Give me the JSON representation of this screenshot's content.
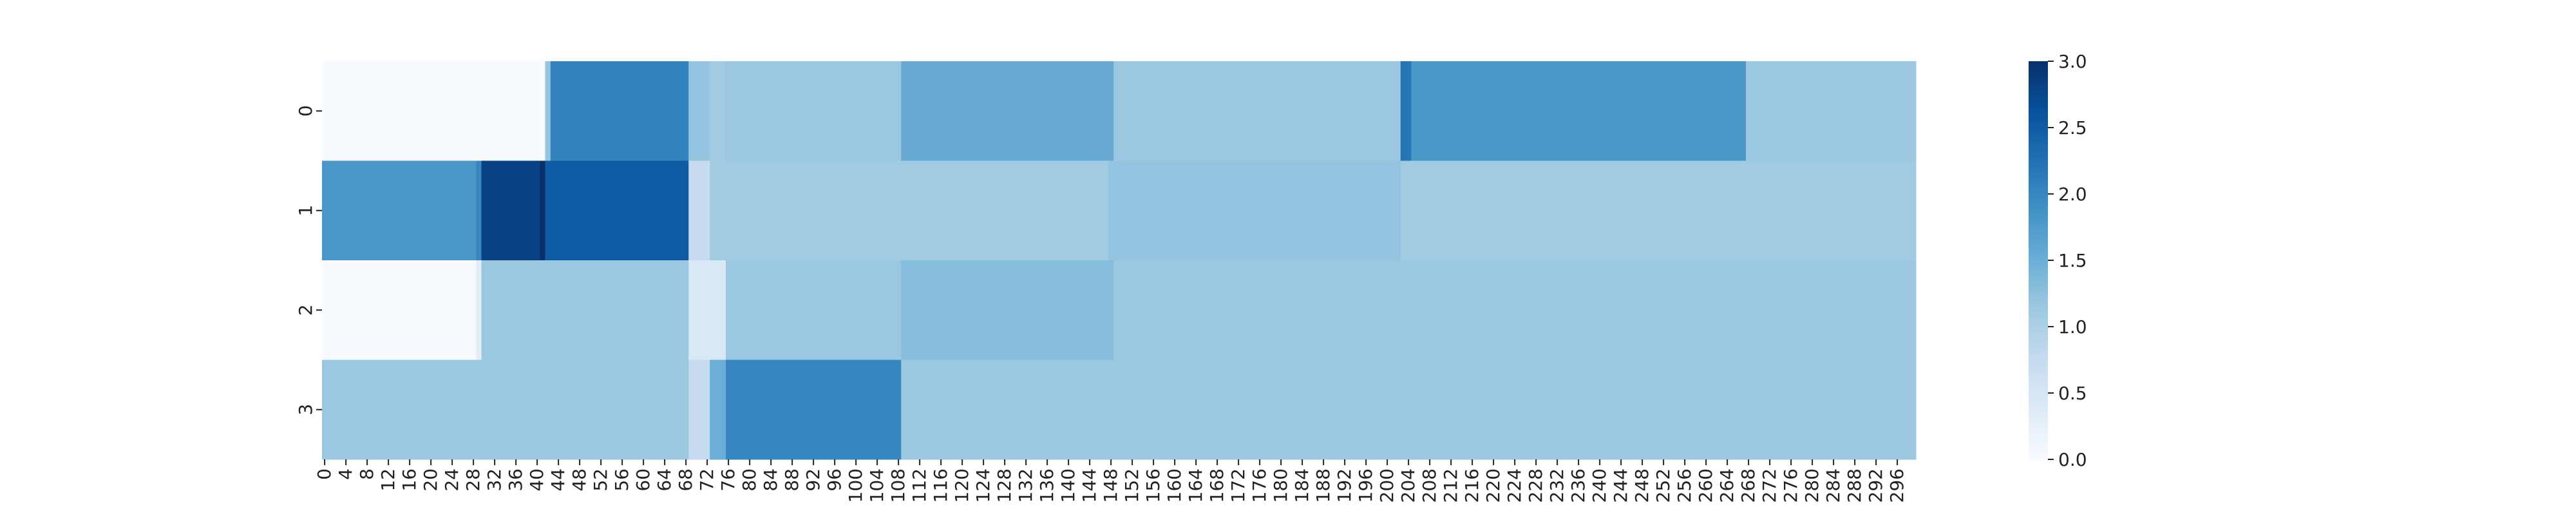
{
  "chart_data": {
    "type": "heatmap",
    "title": "",
    "xlabel": "",
    "ylabel": "",
    "x_tick_labels": [
      "0",
      "4",
      "8",
      "12",
      "16",
      "20",
      "24",
      "28",
      "32",
      "36",
      "40",
      "44",
      "48",
      "52",
      "56",
      "60",
      "64",
      "68",
      "72",
      "76",
      "80",
      "84",
      "88",
      "92",
      "96",
      "100",
      "104",
      "108",
      "112",
      "116",
      "120",
      "124",
      "128",
      "132",
      "136",
      "140",
      "144",
      "148",
      "152",
      "156",
      "160",
      "164",
      "168",
      "172",
      "176",
      "180",
      "184",
      "188",
      "192",
      "196",
      "200",
      "204",
      "208",
      "212",
      "216",
      "220",
      "224",
      "228",
      "232",
      "236",
      "240",
      "244",
      "248",
      "252",
      "256",
      "260",
      "264",
      "268",
      "272",
      "276",
      "280",
      "284",
      "288",
      "292",
      "296"
    ],
    "y_tick_labels": [
      "0",
      "1",
      "2",
      "3"
    ],
    "x_range": [
      0,
      300
    ],
    "colormap": "Blues",
    "value_range": [
      0.0,
      3.0
    ],
    "colorbar_ticks": [
      "0.0",
      "0.5",
      "1.0",
      "1.5",
      "2.0",
      "2.5",
      "3.0"
    ],
    "colors": {
      "low": "#f7fbff",
      "high": "#08306b"
    },
    "rows": [
      {
        "row": "0",
        "segments": [
          {
            "x_start": 0,
            "x_end": 42,
            "value": 0.0
          },
          {
            "x_start": 42,
            "x_end": 43,
            "value": 1.2
          },
          {
            "x_start": 43,
            "x_end": 69,
            "value": 2.05
          },
          {
            "x_start": 69,
            "x_end": 73,
            "value": 1.2
          },
          {
            "x_start": 73,
            "x_end": 76,
            "value": 1.1
          },
          {
            "x_start": 76,
            "x_end": 109,
            "value": 1.15
          },
          {
            "x_start": 109,
            "x_end": 149,
            "value": 1.55
          },
          {
            "x_start": 149,
            "x_end": 203,
            "value": 1.15
          },
          {
            "x_start": 203,
            "x_end": 205,
            "value": 2.2
          },
          {
            "x_start": 205,
            "x_end": 268,
            "value": 1.8
          },
          {
            "x_start": 268,
            "x_end": 300,
            "value": 1.15
          }
        ]
      },
      {
        "row": "1",
        "segments": [
          {
            "x_start": 0,
            "x_end": 29,
            "value": 1.8
          },
          {
            "x_start": 29,
            "x_end": 30,
            "value": 2.0
          },
          {
            "x_start": 30,
            "x_end": 41,
            "value": 2.8
          },
          {
            "x_start": 41,
            "x_end": 42,
            "value": 3.0
          },
          {
            "x_start": 42,
            "x_end": 69,
            "value": 2.5
          },
          {
            "x_start": 69,
            "x_end": 73,
            "value": 0.75
          },
          {
            "x_start": 73,
            "x_end": 148,
            "value": 1.1
          },
          {
            "x_start": 148,
            "x_end": 203,
            "value": 1.2
          },
          {
            "x_start": 203,
            "x_end": 300,
            "value": 1.1
          }
        ]
      },
      {
        "row": "2",
        "segments": [
          {
            "x_start": 0,
            "x_end": 29,
            "value": 0.0
          },
          {
            "x_start": 29,
            "x_end": 30,
            "value": 0.3
          },
          {
            "x_start": 30,
            "x_end": 69,
            "value": 1.15
          },
          {
            "x_start": 69,
            "x_end": 76,
            "value": 0.45
          },
          {
            "x_start": 76,
            "x_end": 109,
            "value": 1.15
          },
          {
            "x_start": 109,
            "x_end": 149,
            "value": 1.3
          },
          {
            "x_start": 149,
            "x_end": 300,
            "value": 1.15
          }
        ]
      },
      {
        "row": "3",
        "segments": [
          {
            "x_start": 0,
            "x_end": 29,
            "value": 1.15
          },
          {
            "x_start": 29,
            "x_end": 69,
            "value": 1.15
          },
          {
            "x_start": 69,
            "x_end": 73,
            "value": 0.75
          },
          {
            "x_start": 73,
            "x_end": 76,
            "value": 1.5
          },
          {
            "x_start": 76,
            "x_end": 109,
            "value": 2.0
          },
          {
            "x_start": 109,
            "x_end": 149,
            "value": 1.15
          },
          {
            "x_start": 149,
            "x_end": 300,
            "value": 1.15
          }
        ]
      }
    ]
  }
}
